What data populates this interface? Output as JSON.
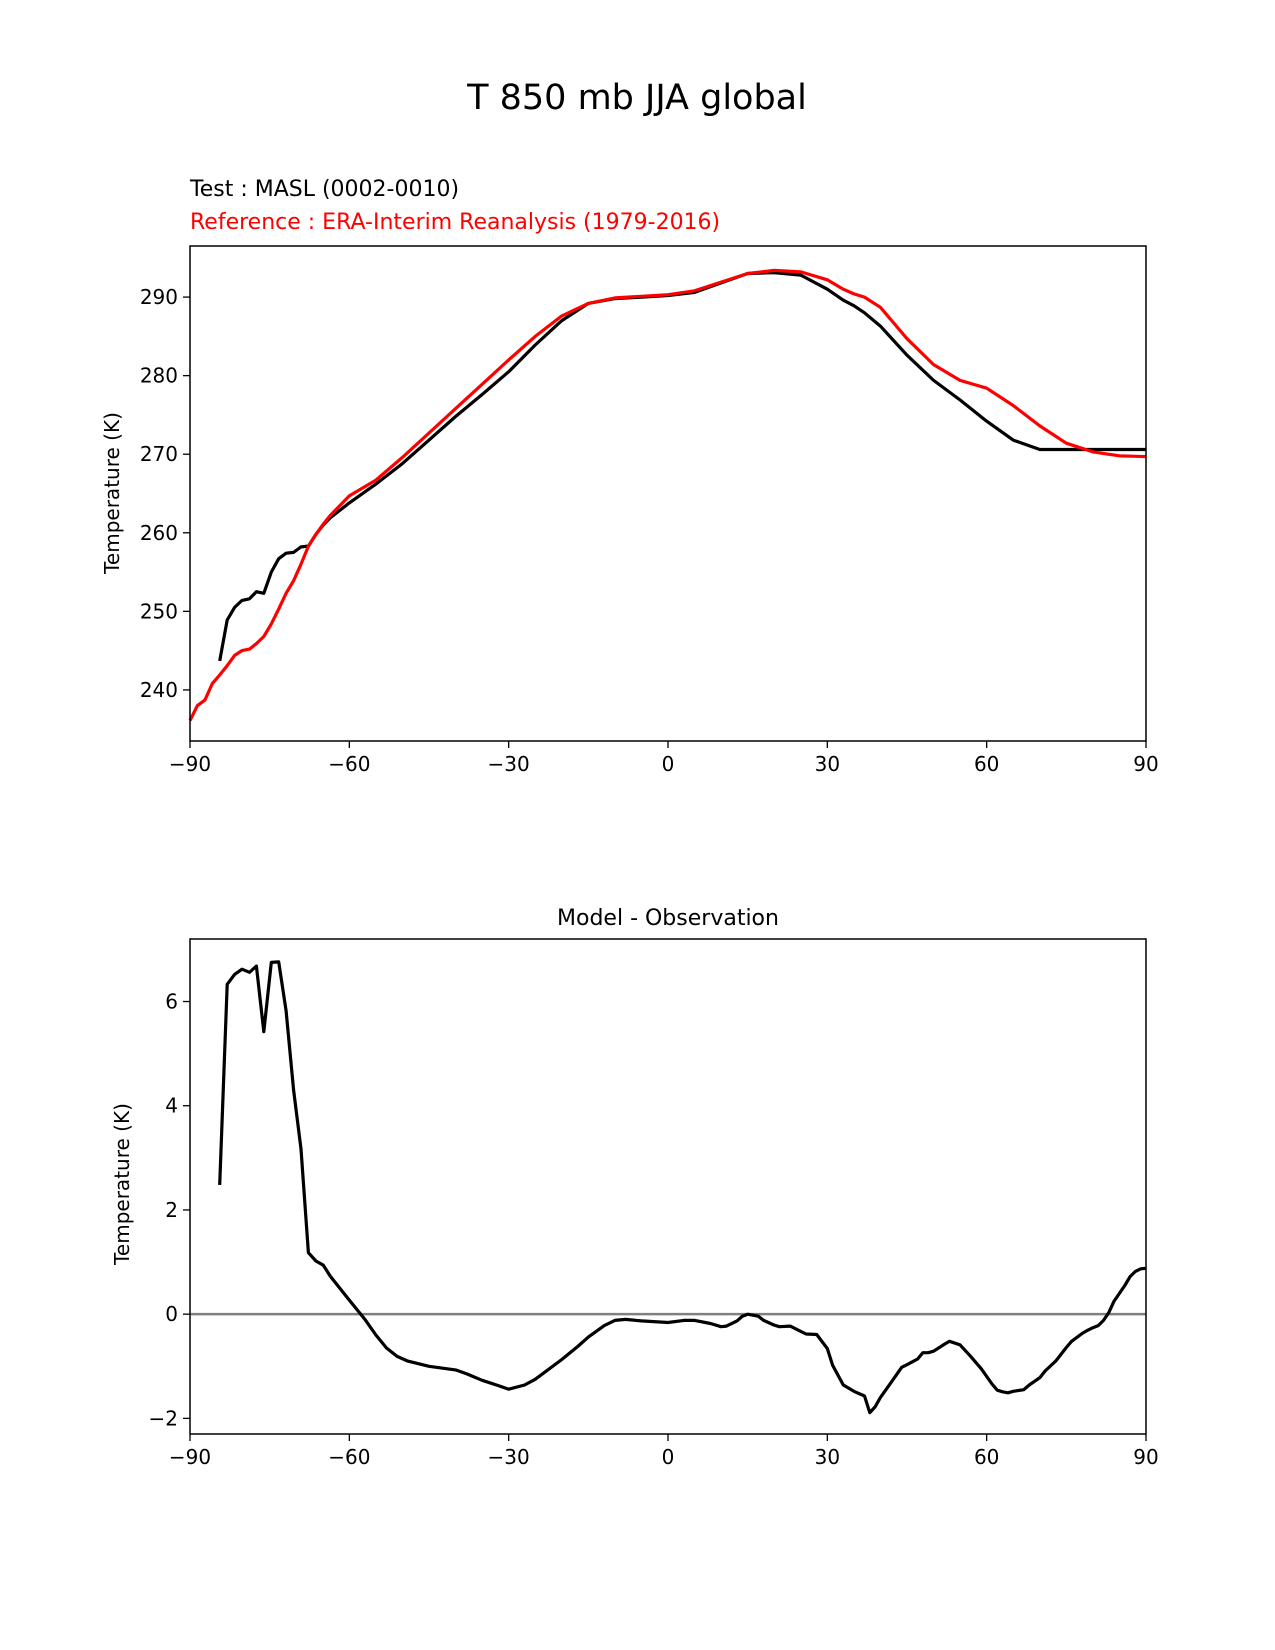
{
  "figure": {
    "title": "T 850 mb JJA global",
    "colors": {
      "test": "#000000",
      "reference": "#ff0000",
      "zero_line": "#808080",
      "axes": "#000000"
    }
  },
  "chart_data": [
    {
      "type": "line",
      "test_label": "Test : MASL (0002-0010)",
      "reference_label": "Reference : ERA-Interim Reanalysis (1979-2016)",
      "xlabel": "",
      "ylabel": "Temperature (K)",
      "xlim": [
        -90,
        90
      ],
      "ylim": [
        233.5,
        296.5
      ],
      "xticks": [
        -90,
        -60,
        -30,
        0,
        30,
        60,
        90
      ],
      "xtick_labels": [
        "−90",
        "−60",
        "−30",
        "0",
        "30",
        "60",
        "90"
      ],
      "yticks": [
        240,
        250,
        260,
        270,
        280,
        290
      ],
      "ytick_labels": [
        "240",
        "250",
        "260",
        "270",
        "280",
        "290"
      ],
      "series": [
        {
          "name": "Test : MASL (0002-0010)",
          "color": "#000000",
          "x": [
            -84.4,
            -83,
            -81.6,
            -80.2,
            -78.8,
            -77.5,
            -76.1,
            -74.7,
            -73.3,
            -71.9,
            -70.5,
            -69.1,
            -67.7,
            -66.3,
            -64.9,
            -63.6,
            -60,
            -55,
            -50,
            -45,
            -40,
            -35,
            -30,
            -25,
            -20,
            -15,
            -10,
            -5,
            0,
            5,
            10,
            15,
            20,
            25,
            30,
            33,
            35,
            37,
            40,
            45,
            50,
            55,
            60,
            65,
            70,
            75,
            80,
            85,
            90
          ],
          "y": [
            243.7,
            248.9,
            250.5,
            251.4,
            251.6,
            252.5,
            252.3,
            255.0,
            256.7,
            257.4,
            257.5,
            258.2,
            258.3,
            259.8,
            261.0,
            261.9,
            263.8,
            266.2,
            268.8,
            271.8,
            274.8,
            277.6,
            280.5,
            283.9,
            287.0,
            289.2,
            289.8,
            290.0,
            290.2,
            290.6,
            291.8,
            293.0,
            293.1,
            292.8,
            291.0,
            289.6,
            288.9,
            288.0,
            286.3,
            282.6,
            279.4,
            276.9,
            274.2,
            271.8,
            270.6,
            270.6,
            270.6,
            270.6,
            270.6
          ]
        },
        {
          "name": "Reference : ERA-Interim Reanalysis (1979-2016)",
          "color": "#ff0000",
          "x": [
            -90,
            -88.6,
            -87.2,
            -85.8,
            -84.4,
            -83,
            -81.6,
            -80.2,
            -78.8,
            -77.5,
            -76.1,
            -74.7,
            -73.3,
            -71.9,
            -70.5,
            -69.1,
            -67.7,
            -66.3,
            -64.9,
            -63.6,
            -60,
            -55,
            -50,
            -45,
            -40,
            -35,
            -30,
            -25,
            -20,
            -15,
            -10,
            -5,
            0,
            5,
            10,
            15,
            20,
            25,
            30,
            33,
            35,
            37,
            40,
            45,
            50,
            55,
            60,
            65,
            70,
            75,
            80,
            85,
            90
          ],
          "y": [
            236.1,
            238.0,
            238.7,
            240.8,
            241.9,
            243.1,
            244.4,
            245.0,
            245.2,
            245.9,
            246.8,
            248.4,
            250.3,
            252.3,
            253.9,
            256.0,
            258.3,
            259.8,
            261.1,
            262.2,
            264.7,
            266.7,
            269.6,
            272.7,
            275.8,
            278.9,
            282.0,
            285.0,
            287.6,
            289.2,
            289.9,
            290.1,
            290.3,
            290.8,
            291.9,
            293.0,
            293.4,
            293.2,
            292.2,
            291.0,
            290.4,
            290.0,
            288.7,
            284.7,
            281.4,
            279.4,
            278.4,
            276.2,
            273.6,
            271.4,
            270.3,
            269.8,
            269.7
          ]
        }
      ]
    },
    {
      "type": "line",
      "title": "Model - Observation",
      "xlabel": "",
      "ylabel": "Temperature (K)",
      "xlim": [
        -90,
        90
      ],
      "ylim": [
        -2.3,
        7.2
      ],
      "xticks": [
        -90,
        -60,
        -30,
        0,
        30,
        60,
        90
      ],
      "xtick_labels": [
        "−90",
        "−60",
        "−30",
        "0",
        "30",
        "60",
        "90"
      ],
      "yticks": [
        -2,
        0,
        2,
        4,
        6
      ],
      "ytick_labels": [
        "−2",
        "0",
        "2",
        "4",
        "6"
      ],
      "zero_line": true,
      "series": [
        {
          "name": "Model - Observation",
          "color": "#000000",
          "x": [
            -84.4,
            -83,
            -81.6,
            -80.2,
            -78.8,
            -77.5,
            -76.1,
            -74.7,
            -73.3,
            -71.9,
            -70.5,
            -69.1,
            -67.7,
            -66.3,
            -64.9,
            -63.6,
            -60,
            -57,
            -55,
            -53,
            -51,
            -49,
            -45,
            -40,
            -38,
            -35,
            -32,
            -30,
            -27,
            -25,
            -20,
            -17,
            -15,
            -12,
            -10,
            -8,
            -5,
            0,
            3,
            5,
            8,
            10,
            11,
            13,
            14,
            15,
            17,
            18,
            20,
            21,
            23,
            25,
            26,
            28,
            30,
            31,
            33,
            35,
            37,
            38,
            39,
            40,
            42,
            44,
            45,
            47,
            48,
            49,
            50,
            52,
            53,
            55,
            57,
            59,
            61,
            62,
            63,
            64,
            65,
            67,
            68,
            70,
            71,
            73,
            75,
            76,
            78,
            79,
            80,
            81,
            82,
            83,
            84,
            86,
            87,
            88,
            89,
            90
          ],
          "y": [
            2.48,
            6.33,
            6.52,
            6.62,
            6.56,
            6.68,
            5.42,
            6.75,
            6.76,
            5.82,
            4.3,
            3.17,
            1.18,
            1.02,
            0.94,
            0.73,
            0.27,
            -0.11,
            -0.4,
            -0.65,
            -0.81,
            -0.9,
            -1.0,
            -1.07,
            -1.14,
            -1.27,
            -1.37,
            -1.44,
            -1.36,
            -1.25,
            -0.87,
            -0.62,
            -0.44,
            -0.22,
            -0.12,
            -0.1,
            -0.13,
            -0.16,
            -0.12,
            -0.12,
            -0.18,
            -0.24,
            -0.23,
            -0.13,
            -0.04,
            0.0,
            -0.04,
            -0.12,
            -0.21,
            -0.24,
            -0.23,
            -0.33,
            -0.38,
            -0.39,
            -0.66,
            -0.98,
            -1.36,
            -1.48,
            -1.57,
            -1.89,
            -1.78,
            -1.6,
            -1.31,
            -1.02,
            -0.97,
            -0.86,
            -0.74,
            -0.74,
            -0.71,
            -0.58,
            -0.52,
            -0.59,
            -0.81,
            -1.05,
            -1.34,
            -1.46,
            -1.49,
            -1.51,
            -1.48,
            -1.45,
            -1.36,
            -1.22,
            -1.09,
            -0.9,
            -0.64,
            -0.52,
            -0.37,
            -0.31,
            -0.26,
            -0.22,
            -0.12,
            0.03,
            0.25,
            0.55,
            0.72,
            0.82,
            0.87,
            0.88
          ]
        }
      ]
    }
  ]
}
